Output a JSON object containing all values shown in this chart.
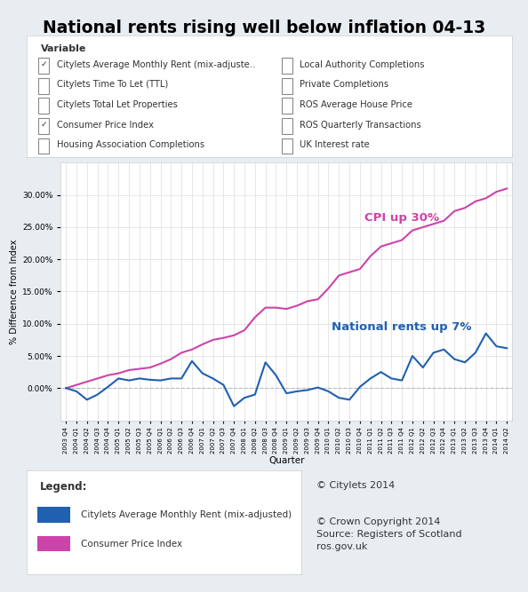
{
  "title": "National rents rising well below inflation 04-13",
  "xlabel": "Quarter",
  "ylabel": "% Difference from Index",
  "quarters": [
    "2003 Q4",
    "2004 Q1",
    "2004 Q2",
    "2004 Q3",
    "2004 Q4",
    "2005 Q1",
    "2005 Q2",
    "2005 Q3",
    "2005 Q4",
    "2006 Q1",
    "2006 Q2",
    "2006 Q3",
    "2006 Q4",
    "2007 Q1",
    "2007 Q2",
    "2007 Q3",
    "2007 Q4",
    "2008 Q1",
    "2008 Q2",
    "2008 Q3",
    "2008 Q4",
    "2009 Q1",
    "2009 Q2",
    "2009 Q3",
    "2009 Q4",
    "2010 Q1",
    "2010 Q2",
    "2010 Q3",
    "2010 Q4",
    "2011 Q1",
    "2011 Q2",
    "2011 Q3",
    "2011 Q4",
    "2012 Q1",
    "2012 Q2",
    "2012 Q3",
    "2012 Q4",
    "2013 Q1",
    "2013 Q2",
    "2013 Q3",
    "2013 Q4",
    "2014 Q1",
    "2014 Q2"
  ],
  "rent": [
    0.0,
    -0.5,
    -1.8,
    -1.0,
    0.2,
    1.5,
    1.2,
    1.5,
    1.3,
    1.2,
    1.5,
    1.5,
    4.2,
    2.3,
    1.5,
    0.5,
    -2.8,
    -1.5,
    -1.0,
    4.0,
    2.0,
    -0.8,
    -0.5,
    -0.3,
    0.1,
    -0.5,
    -1.5,
    -1.8,
    0.2,
    1.5,
    2.5,
    1.5,
    1.2,
    5.0,
    3.2,
    5.5,
    6.0,
    4.5,
    4.0,
    5.5,
    8.5,
    6.5,
    6.2
  ],
  "cpi": [
    0.0,
    0.5,
    1.0,
    1.5,
    2.0,
    2.3,
    2.8,
    3.0,
    3.2,
    3.8,
    4.5,
    5.5,
    6.0,
    6.8,
    7.5,
    7.8,
    8.2,
    9.0,
    11.0,
    12.5,
    12.5,
    12.3,
    12.8,
    13.5,
    13.8,
    15.5,
    17.5,
    18.0,
    18.5,
    20.5,
    22.0,
    22.5,
    23.0,
    24.5,
    25.0,
    25.5,
    26.0,
    27.5,
    28.0,
    29.0,
    29.5,
    30.5,
    31.0
  ],
  "rent_color": "#2060b0",
  "cpi_color": "#cc44aa",
  "bg_color": "#e8edf2",
  "panel_bg": "#ffffff",
  "plot_bg": "#ffffff",
  "ylim": [
    -5.0,
    35.0
  ],
  "yticks": [
    0.0,
    5.0,
    10.0,
    15.0,
    20.0,
    25.0,
    30.0
  ],
  "annotation_rent_text": "National rents up 7%",
  "annotation_cpi_text": "CPI up 30%",
  "annotation_rent_xi": 32,
  "annotation_rent_yi": 9.5,
  "annotation_cpi_xi": 32,
  "annotation_cpi_yi": 26.5,
  "legend_title": "Legend:",
  "legend_rent": "Citylets Average Monthly Rent (mix-adjusted)",
  "legend_cpi": "Consumer Price Index",
  "copyright1": "© Citylets 2014",
  "copyright2": "© Crown Copyright 2014\nSource: Registers of Scotland\nros.gov.uk",
  "left_items": [
    [
      "Citylets Average Monthly Rent (mix-adjuste..",
      true
    ],
    [
      "Citylets Time To Let (TTL)",
      false
    ],
    [
      "Citylets Total Let Properties",
      false
    ],
    [
      "Consumer Price Index",
      true
    ],
    [
      "Housing Association Completions",
      false
    ]
  ],
  "right_items": [
    [
      "Local Authority Completions",
      false
    ],
    [
      "Private Completions",
      false
    ],
    [
      "ROS Average House Price",
      false
    ],
    [
      "ROS Quarterly Transactions",
      false
    ],
    [
      "UK Interest rate",
      false
    ]
  ]
}
